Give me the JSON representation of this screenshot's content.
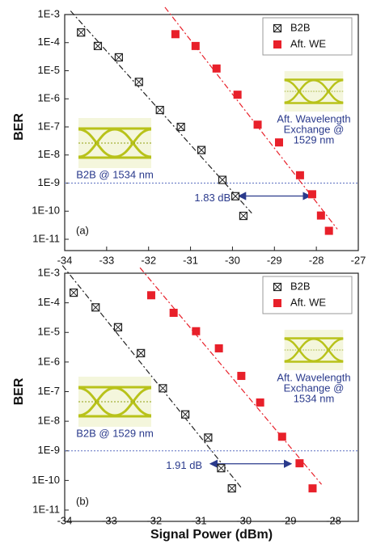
{
  "chart_data": [
    {
      "type": "scatter",
      "ylabel": "BER",
      "panel_label": "(a)",
      "log_y": true,
      "xlim": [
        -34,
        -27
      ],
      "xticks": [
        -34,
        -33,
        -32,
        -31,
        -30,
        -29,
        -28,
        -27
      ],
      "ylim": [
        1e-11,
        0.001
      ],
      "yticks": [
        {
          "value": 0.001,
          "label": "1E-3"
        },
        {
          "value": 0.0001,
          "label": "1E-4"
        },
        {
          "value": 1e-05,
          "label": "1E-5"
        },
        {
          "value": 1e-06,
          "label": "1E-6"
        },
        {
          "value": 1e-07,
          "label": "1E-7"
        },
        {
          "value": 1e-08,
          "label": "1E-8"
        },
        {
          "value": 1e-09,
          "label": "1E-9"
        },
        {
          "value": 1e-10,
          "label": "1E-10"
        },
        {
          "value": 1e-11,
          "label": "1E-11"
        }
      ],
      "legend": "top-right",
      "series": [
        {
          "name": "B2B",
          "color": "#222222",
          "marker": "crossed-square",
          "x": [
            -33.61,
            -33.21,
            -32.71,
            -32.23,
            -31.73,
            -31.23,
            -30.74,
            -30.24,
            -29.93,
            -29.74
          ],
          "values": [
            0.00023,
            7.6e-05,
            3e-05,
            4e-06,
            4e-07,
            1e-07,
            1.5e-08,
            1.3e-09,
            3.4e-10,
            6.8e-11
          ]
        },
        {
          "name": "Aft. WE",
          "color": "#e8202a",
          "marker": "filled-square",
          "x": [
            -31.36,
            -30.88,
            -30.38,
            -29.88,
            -29.4,
            -28.89,
            -28.39,
            -28.1,
            -27.89,
            -27.7
          ],
          "values": [
            0.0002,
            7.6e-05,
            1.2e-05,
            1.4e-06,
            1.2e-07,
            2.8e-08,
            1.9e-09,
            4e-10,
            7e-11,
            2e-11
          ]
        }
      ],
      "ref_level": 1e-09,
      "penalty_arrow_x": [
        -29.85,
        -28.15
      ],
      "penalty_label": "1.83 dB",
      "inset_left_label": "B2B @ 1534 nm",
      "inset_right_label": [
        "Aft. Wavelength",
        "Exchange @",
        "1529 nm"
      ]
    },
    {
      "type": "scatter",
      "ylabel": "BER",
      "xlabel": "Signal Power (dBm)",
      "panel_label": "(b)",
      "log_y": true,
      "xlim": [
        -34,
        -27.45
      ],
      "xticks": [
        -34,
        -33,
        -32,
        -31,
        -30,
        -29,
        -28
      ],
      "ylim": [
        1e-11,
        0.001
      ],
      "yticks": [
        {
          "value": 0.001,
          "label": "1E-3"
        },
        {
          "value": 0.0001,
          "label": "1E-4"
        },
        {
          "value": 1e-05,
          "label": "1E-5"
        },
        {
          "value": 1e-06,
          "label": "1E-6"
        },
        {
          "value": 1e-07,
          "label": "1E-7"
        },
        {
          "value": 1e-08,
          "label": "1E-8"
        },
        {
          "value": 1e-09,
          "label": "1E-9"
        },
        {
          "value": 1e-10,
          "label": "1E-10"
        },
        {
          "value": 1e-11,
          "label": "1E-11"
        }
      ],
      "legend": "top-right",
      "series": [
        {
          "name": "B2B",
          "color": "#222222",
          "marker": "crossed-square",
          "x": [
            -33.8,
            -33.31,
            -32.81,
            -32.3,
            -31.81,
            -31.31,
            -30.8,
            -30.51,
            -30.27
          ],
          "values": [
            0.00022,
            7e-05,
            1.5e-05,
            2e-06,
            1.3e-07,
            1.7e-08,
            2.8e-09,
            2.6e-10,
            5.4e-11
          ]
        },
        {
          "name": "Aft. WE",
          "color": "#e8202a",
          "marker": "filled-square",
          "x": [
            -32.07,
            -31.57,
            -31.07,
            -30.56,
            -30.06,
            -29.64,
            -29.15,
            -28.76,
            -28.47
          ],
          "values": [
            0.00018,
            4.6e-05,
            1.1e-05,
            2.9e-06,
            3.4e-07,
            4.3e-08,
            3e-09,
            3.8e-10,
            5.4e-11
          ]
        }
      ],
      "ref_level": 1e-09,
      "penalty_arrow_x": [
        -30.75,
        -28.95
      ],
      "penalty_label": "1.91 dB",
      "inset_left_label": "B2B @ 1529 nm",
      "inset_right_label": [
        "Aft. Wavelength",
        "Exchange @",
        "1534 nm"
      ]
    }
  ]
}
